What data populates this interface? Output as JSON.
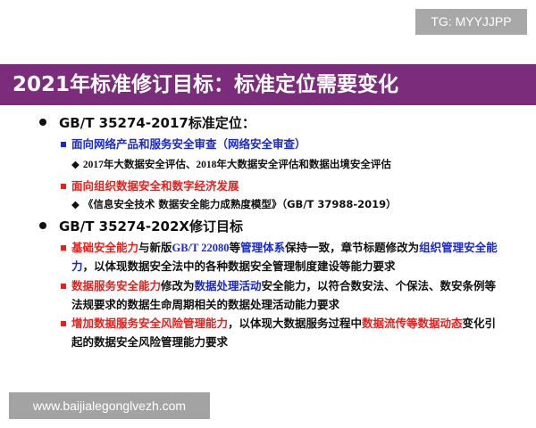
{
  "watermark_top": "TG: MYYJJPP",
  "watermark_bottom": "www.baijialegonglvezh.com",
  "title": "2021年标准修订目标：标准定位需要变化",
  "colors": {
    "band": "#7b2d7c",
    "red": "#e8201c",
    "blue": "#1a2ac8"
  },
  "section1": {
    "heading": "GB/T 35274-2017标准定位：",
    "item1": "面向网络产品和服务安全审查（网络安全审查）",
    "item1_sub": "2017年大数据安全评估、2018年大数据安全评估和数据出境安全评估",
    "item2": "面向组织数据安全和数字经济发展",
    "item2_sub": "《信息安全技术 数据安全能力成熟度模型》（GB/T 37988-2019）"
  },
  "section2": {
    "heading": "GB/T 35274-202X修订目标",
    "items": [
      {
        "segments": [
          {
            "text": "基础安全能力",
            "color": "red"
          },
          {
            "text": "与新版",
            "color": "black"
          },
          {
            "text": "GB/T 22080",
            "color": "blue"
          },
          {
            "text": "等",
            "color": "black"
          },
          {
            "text": "管理体系",
            "color": "blue"
          },
          {
            "text": "保持一致，章节标题修改为",
            "color": "black"
          },
          {
            "text": "组织管理安全能",
            "color": "blue"
          }
        ],
        "segments2": [
          {
            "text": "力",
            "color": "blue"
          },
          {
            "text": "，以体现数据安全法中的各种数据安全管理制度建设等能力要求",
            "color": "black"
          }
        ]
      },
      {
        "segments": [
          {
            "text": "数据服务安全能力",
            "color": "red"
          },
          {
            "text": "修改为",
            "color": "black"
          },
          {
            "text": "数据处理活动",
            "color": "blue"
          },
          {
            "text": "安全能力，以符合数安法、个保法、数安条例等",
            "color": "black"
          }
        ],
        "segments2": [
          {
            "text": "法规要求的数据生命周期相关的数据处理活动能力要求",
            "color": "black"
          }
        ]
      },
      {
        "segments": [
          {
            "text": "增加数据服务安全风险管理能力",
            "color": "red"
          },
          {
            "text": "，以体现大数据服务过程中",
            "color": "black"
          },
          {
            "text": "数据流传等数据动态",
            "color": "red"
          },
          {
            "text": "变化引",
            "color": "black"
          }
        ],
        "segments2": [
          {
            "text": "起的数据安全风险管理能力要求",
            "color": "black"
          }
        ]
      }
    ]
  }
}
